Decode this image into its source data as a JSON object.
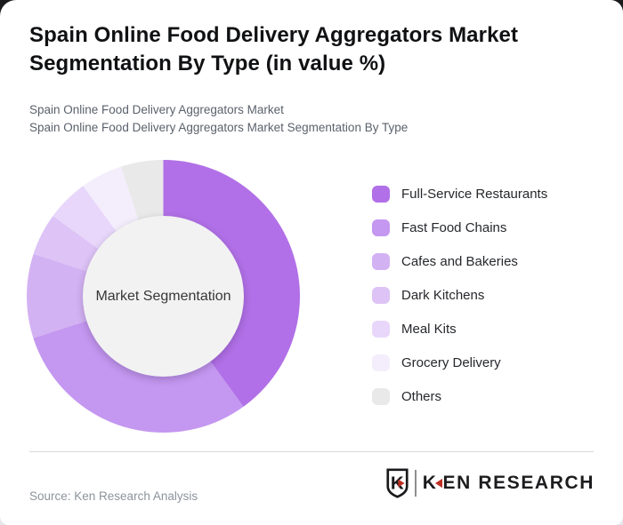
{
  "header": {
    "title": "Spain Online Food Delivery Aggregators Market Segmentation By Type (in value %)",
    "subtitle_line1": "Spain Online Food Delivery Aggregators Market",
    "subtitle_line2": "Spain Online Food Delivery Aggregators Market Segmentation By Type"
  },
  "chart_data": {
    "type": "pie",
    "donut": true,
    "title": "Spain Online Food Delivery Aggregators Market Segmentation By Type (in value %)",
    "center_label": "Market Segmentation",
    "unit": "%",
    "start_angle_deg": 0,
    "direction": "clockwise",
    "legend_position": "right",
    "values_estimated_from_angles": true,
    "categories": [
      "Full-Service Restaurants",
      "Fast Food Chains",
      "Cafes and Bakeries",
      "Dark Kitchens",
      "Meal Kits",
      "Grocery Delivery",
      "Others"
    ],
    "values": [
      40,
      30,
      10,
      5,
      5,
      5,
      5
    ],
    "segments": [
      {
        "label": "Full-Service Restaurants",
        "value": 40,
        "color": "#b170e7"
      },
      {
        "label": "Fast Food Chains",
        "value": 30,
        "color": "#c497f0"
      },
      {
        "label": "Cafes and Bakeries",
        "value": 10,
        "color": "#d3b2f3"
      },
      {
        "label": "Dark Kitchens",
        "value": 5,
        "color": "#ddc3f6"
      },
      {
        "label": "Meal Kits",
        "value": 5,
        "color": "#e8d7fa"
      },
      {
        "label": "Grocery Delivery",
        "value": 5,
        "color": "#f4eefc"
      },
      {
        "label": "Others",
        "value": 5,
        "color": "#e9e9e9"
      }
    ],
    "hole_color": "#f2f2f3"
  },
  "footer": {
    "source": "Source: Ken Research Analysis",
    "logo": {
      "emblem_letter": "K",
      "brand_first_letter": "K",
      "brand_rest": "EN RESEARCH",
      "accent_color": "#bf2e22"
    }
  }
}
